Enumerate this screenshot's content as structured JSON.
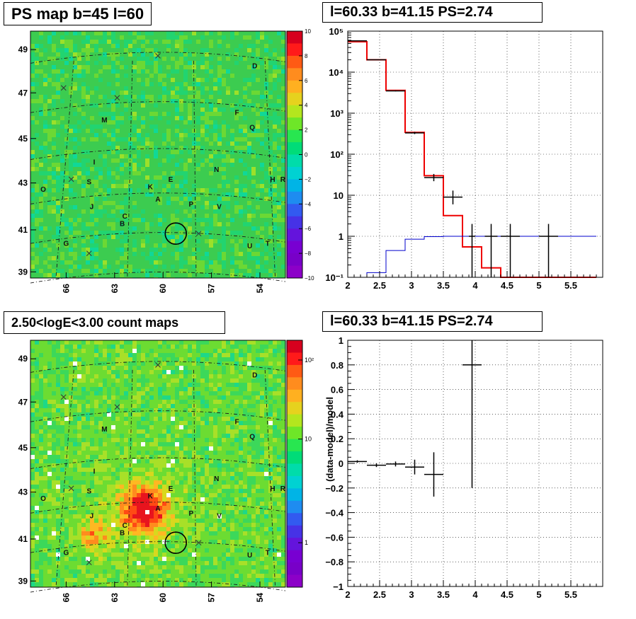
{
  "panels": {
    "ps_map_title": "PS map b=45 l=60",
    "spectrum_title": "l=60.33 b=41.15 PS=2.74",
    "count_map_title": "2.50<logE<3.00 count maps",
    "residual_title": "l=60.33 b=41.15 PS=2.74"
  },
  "chart_data": [
    {
      "type": "heatmap",
      "id": "ps_map",
      "title": "PS map b=45 l=60",
      "x_ticks": [
        "66",
        "63",
        "60",
        "57",
        "54"
      ],
      "y_ticks": [
        "39",
        "41",
        "43",
        "45",
        "47",
        "49"
      ],
      "colorbar": {
        "ticks": [
          "10",
          "8",
          "6",
          "4",
          "2",
          "0",
          "−2",
          "−4",
          "−6",
          "−8",
          "−10"
        ],
        "colors": [
          "#d7001e",
          "#ff1a1a",
          "#ff5a14",
          "#ff8c1e",
          "#ffb020",
          "#e6d21e",
          "#b4e61e",
          "#6ee628",
          "#28e650",
          "#00dc78",
          "#00dcaa",
          "#00d2d2",
          "#00b4e6",
          "#1e8cf0",
          "#325af0",
          "#4632e6",
          "#6414dc",
          "#7800d2",
          "#7800c8",
          "#8c00c8"
        ]
      },
      "labels": [
        "A",
        "B",
        "C",
        "D",
        "E",
        "F",
        "G",
        "H",
        "I",
        "J",
        "K",
        "M",
        "N",
        "O",
        "P",
        "Q",
        "R",
        "S",
        "T",
        "U",
        "V"
      ],
      "base_color": "#3ccc50"
    },
    {
      "type": "line",
      "id": "spectrum",
      "title": "l=60.33 b=41.15 PS=2.74",
      "xlim": [
        2,
        6
      ],
      "ylim_log10": [
        -1,
        5
      ],
      "log_y": true,
      "grid": true,
      "x_ticks": [
        "2",
        "2.5",
        "3",
        "3.5",
        "4",
        "4.5",
        "5",
        "5.5"
      ],
      "y_ticks": [
        "10⁻¹",
        "1",
        "10",
        "10²",
        "10³",
        "10⁴",
        "10⁵"
      ],
      "series": [
        {
          "color": "#ee0000",
          "type": "step",
          "edges": [
            2.0,
            2.3,
            2.6,
            2.9,
            3.2,
            3.5,
            3.8,
            4.1,
            4.4,
            4.7,
            5.0,
            5.3,
            5.6,
            5.9
          ],
          "values": [
            55000,
            20000,
            3600,
            340,
            30,
            3.2,
            0.55,
            0.17,
            0.1,
            0.1,
            0.1,
            0.1,
            0.1
          ]
        },
        {
          "color": "#0000cc",
          "type": "step",
          "edges": [
            2.0,
            2.3,
            2.6,
            2.9,
            3.2,
            3.5,
            3.8,
            4.1,
            4.4,
            4.7,
            5.0,
            5.3,
            5.6,
            5.9
          ],
          "values": [
            0.1,
            0.13,
            0.45,
            0.85,
            0.98,
            1.0,
            1.0,
            1.0,
            1.0,
            1.0,
            1.0,
            1.0,
            1.0
          ]
        },
        {
          "color": "#000000",
          "type": "points",
          "points": [
            {
              "x": 2.15,
              "xerr": 0.15,
              "y": 58000,
              "ylo": 57000,
              "yhi": 59000
            },
            {
              "x": 2.45,
              "xerr": 0.15,
              "y": 20000,
              "ylo": 19700,
              "yhi": 20300
            },
            {
              "x": 2.75,
              "xerr": 0.15,
              "y": 3500,
              "ylo": 3400,
              "yhi": 3600
            },
            {
              "x": 3.05,
              "xerr": 0.15,
              "y": 330,
              "ylo": 310,
              "yhi": 350
            },
            {
              "x": 3.35,
              "xerr": 0.15,
              "y": 27,
              "ylo": 22,
              "yhi": 33
            },
            {
              "x": 3.65,
              "xerr": 0.15,
              "y": 9,
              "ylo": 6,
              "yhi": 13
            },
            {
              "x": 3.95,
              "xerr": 0.05,
              "y": 1.0,
              "ylo": 0.1,
              "yhi": 2.0
            },
            {
              "x": 4.25,
              "xerr": 0.1,
              "y": 1.0,
              "ylo": 0.1,
              "yhi": 2.0
            },
            {
              "x": 4.55,
              "xerr": 0.15,
              "y": 1.0,
              "ylo": 0.1,
              "yhi": 2.0
            },
            {
              "x": 5.15,
              "xerr": 0.15,
              "y": 1.0,
              "ylo": 0.1,
              "yhi": 2.0
            }
          ]
        }
      ]
    },
    {
      "type": "heatmap",
      "id": "count_map",
      "title": "2.50<logE<3.00 count maps",
      "x_ticks": [
        "66",
        "63",
        "60",
        "57",
        "54"
      ],
      "y_ticks": [
        "39",
        "41",
        "43",
        "45",
        "47",
        "49"
      ],
      "colorbar": {
        "ticks": [
          "10²",
          "10",
          "1"
        ],
        "colors": [
          "#d7001e",
          "#ff1a1a",
          "#ff5a14",
          "#ff8c1e",
          "#ffb020",
          "#e6d21e",
          "#b4e61e",
          "#6ee628",
          "#28e650",
          "#00dc78",
          "#00dcaa",
          "#00d2d2",
          "#00b4e6",
          "#1e8cf0",
          "#325af0",
          "#4632e6",
          "#6414dc",
          "#7800d2",
          "#7800c8",
          "#8c00c8"
        ]
      },
      "labels": [
        "A",
        "B",
        "C",
        "D",
        "E",
        "F",
        "G",
        "H",
        "I",
        "J",
        "K",
        "M",
        "N",
        "O",
        "P",
        "Q",
        "R",
        "S",
        "T",
        "U",
        "V"
      ],
      "base_color": "#5ed43c"
    },
    {
      "type": "scatter",
      "id": "residual",
      "title": "l=60.33 b=41.15 PS=2.74",
      "xlim": [
        2,
        6
      ],
      "ylim": [
        -1,
        1
      ],
      "grid": true,
      "ylabel": "(data-model)/model",
      "x_ticks": [
        "2",
        "2.5",
        "3",
        "3.5",
        "4",
        "4.5",
        "5",
        "5.5"
      ],
      "y_ticks": [
        "−1",
        "−0.8",
        "−0.6",
        "−0.4",
        "−0.2",
        "0",
        "0.2",
        "0.4",
        "0.6",
        "0.8",
        "1"
      ],
      "points": [
        {
          "x": 2.15,
          "xerr": 0.15,
          "y": 0.015,
          "yerr": 0.01
        },
        {
          "x": 2.45,
          "xerr": 0.15,
          "y": -0.015,
          "yerr": 0.015
        },
        {
          "x": 2.75,
          "xerr": 0.15,
          "y": -0.005,
          "yerr": 0.02
        },
        {
          "x": 3.05,
          "xerr": 0.15,
          "y": -0.03,
          "yerr": 0.06
        },
        {
          "x": 3.35,
          "xerr": 0.15,
          "y": -0.09,
          "yerr": 0.18
        },
        {
          "x": 3.95,
          "xerr": 0.15,
          "y": 0.8,
          "yerr": 1.0
        }
      ]
    }
  ]
}
